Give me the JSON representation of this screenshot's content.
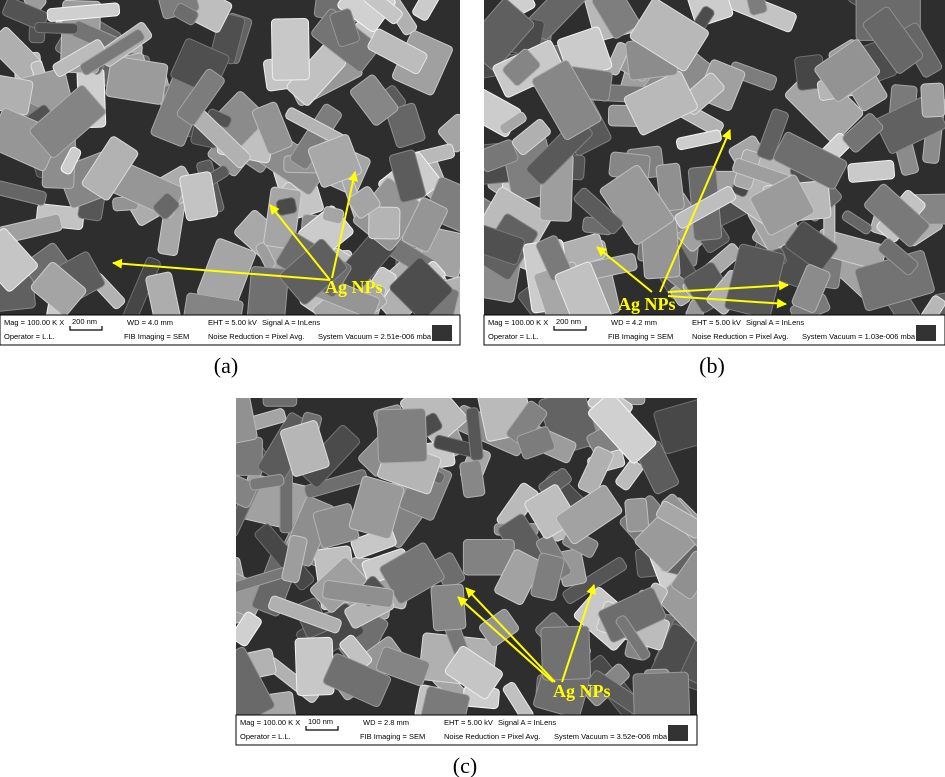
{
  "panels": [
    {
      "caption": "(a)",
      "label": "Ag NPs",
      "info": {
        "mag": "Mag = 100.00 K X",
        "operator": "Operator = L.L.",
        "scale": "200 nm",
        "wd": "WD = 4.0 mm",
        "fib": "FIB Imaging = SEM",
        "eht": "EHT = 5.00 kV",
        "signal": "Signal A = InLens",
        "noise": "Noise Reduction = Pixel Avg.",
        "vacuum": "System Vacuum = 2.51e-006 mba"
      }
    },
    {
      "caption": "(b)",
      "label": "Ag NPs",
      "info": {
        "mag": "Mag = 100.00 K X",
        "operator": "Operator = L.L.",
        "scale": "200 nm",
        "wd": "WD = 4.2 mm",
        "fib": "FIB Imaging = SEM",
        "eht": "EHT = 5.00 kV",
        "signal": "Signal A = InLens",
        "noise": "Noise Reduction = Pixel Avg.",
        "vacuum": "System Vacuum = 1.03e-006 mba"
      }
    },
    {
      "caption": "(c)",
      "label": "Ag NPs",
      "info": {
        "mag": "Mag = 100.00 K X",
        "operator": "Operator = L.L.",
        "scale": "100 nm",
        "wd": "WD = 2.8 mm",
        "fib": "FIB Imaging = SEM",
        "eht": "EHT = 5.00 kV",
        "signal": "Signal A = InLens",
        "noise": "Noise Reduction = Pixel Avg.",
        "vacuum": "System Vacuum = 3.52e-006 mba"
      }
    }
  ]
}
